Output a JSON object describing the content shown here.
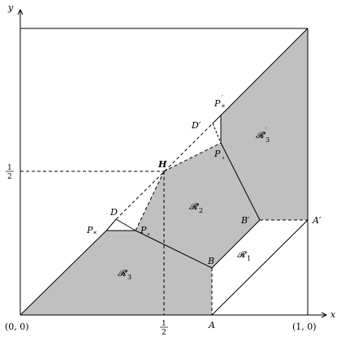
{
  "axes": {
    "x_label": "x",
    "y_label": "y",
    "origin_label": "(0, 0)",
    "x_one_label": "(1, 0)",
    "x_half_num": "1",
    "x_half_den": "2",
    "y_half_num": "1",
    "y_half_den": "2"
  },
  "points": {
    "H": "H",
    "A": "A",
    "A_prime": "A′",
    "B": "B",
    "B_prime": "B′",
    "D": "D",
    "D_prime": "D′",
    "P_star": "P",
    "P_star_sub": "*",
    "P_circ": "P",
    "P_circ_sub": "∘",
    "P_star_prime": "P",
    "P_star_prime_sub": "*",
    "P_star_prime_sup": "′",
    "P_circ_prime": "P",
    "P_circ_prime_sub": "∘",
    "P_circ_prime_sup": "′"
  },
  "regions": {
    "R1": "𝓡",
    "R1_sub": "1",
    "R2": "𝓡̃",
    "R2_sub": "2",
    "R3": "𝓡̃",
    "R3_sub": "3",
    "R3_prime": "𝓡̃",
    "R3_prime_sub": "3",
    "R3_prime_sup": "′"
  },
  "colors": {
    "region_fill": "#c0c0c0",
    "line": "#000000"
  }
}
